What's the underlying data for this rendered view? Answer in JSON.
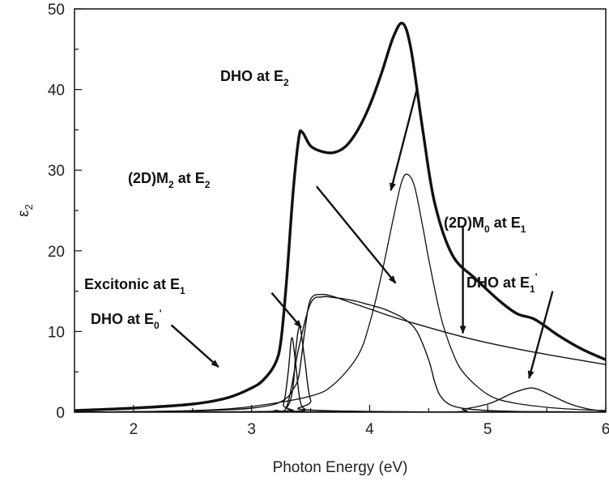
{
  "chart_data": {
    "type": "line",
    "xlabel": "Photon Energy (eV)",
    "ylabel_main": "ε",
    "ylabel_sub": "2",
    "xlim": [
      1.5,
      6.0
    ],
    "ylim": [
      0,
      50
    ],
    "xticks": [
      "2",
      "3",
      "4",
      "5",
      "6"
    ],
    "yticks": [
      "0",
      "10",
      "20",
      "30",
      "40",
      "50"
    ],
    "grid": false,
    "series": [
      {
        "role": "total",
        "x": [
          1.5,
          2.0,
          2.5,
          2.8,
          3.0,
          3.1,
          3.2,
          3.25,
          3.3,
          3.35,
          3.4,
          3.43,
          3.5,
          3.6,
          3.7,
          3.8,
          3.9,
          4.0,
          4.1,
          4.2,
          4.28,
          4.35,
          4.45,
          4.55,
          4.7,
          4.9,
          5.1,
          5.25,
          5.4,
          5.6,
          5.8,
          6.0
        ],
        "y": [
          0.2,
          0.5,
          1.0,
          1.8,
          3.0,
          4.0,
          6.0,
          9.0,
          17.0,
          27.0,
          34.0,
          34.7,
          33.0,
          32.3,
          32.2,
          33.0,
          35.0,
          38.0,
          42.0,
          46.5,
          48.2,
          45.0,
          35.0,
          26.0,
          19.5,
          16.5,
          13.8,
          12.2,
          11.5,
          9.5,
          7.8,
          6.5
        ]
      },
      {
        "role": "DHO at E2",
        "x": [
          1.5,
          2.5,
          3.0,
          3.5,
          3.7,
          3.9,
          4.0,
          4.1,
          4.2,
          4.27,
          4.32,
          4.38,
          4.45,
          4.5,
          4.6,
          4.7,
          4.8,
          5.0,
          5.2,
          5.5,
          5.8,
          6.0
        ],
        "y": [
          0,
          0.2,
          0.7,
          2.0,
          3.5,
          7.0,
          11.0,
          17.0,
          24.0,
          28.5,
          29.5,
          28.0,
          23.0,
          19.0,
          12.0,
          7.5,
          4.8,
          2.2,
          1.2,
          0.6,
          0.3,
          0.2
        ]
      },
      {
        "role": "(2D)M2 at E2",
        "x": [
          1.5,
          3.0,
          3.2,
          3.3,
          3.4,
          3.5,
          3.6,
          3.7,
          3.8,
          3.9,
          4.0,
          4.1,
          4.2,
          4.3,
          4.4,
          4.5,
          4.55,
          4.6,
          4.7,
          4.9,
          5.2,
          5.6,
          6.0
        ],
        "y": [
          0,
          0,
          0.2,
          0.8,
          8.0,
          13.5,
          14.3,
          14.2,
          14.0,
          13.7,
          13.3,
          12.9,
          12.3,
          11.5,
          10.0,
          6.5,
          3.8,
          2.0,
          0.8,
          0.3,
          0.1,
          0.05,
          0
        ],
        "stroke_width": 1.4
      },
      {
        "role": "(2D)M0 at E1",
        "x": [
          1.5,
          2.0,
          2.5,
          2.8,
          3.0,
          3.2,
          3.3,
          3.35,
          3.4,
          3.45,
          3.5,
          3.6,
          3.7,
          3.8,
          4.0,
          4.2,
          4.5,
          4.8,
          5.0,
          5.3,
          5.6,
          6.0
        ],
        "y": [
          0,
          0.05,
          0.15,
          0.3,
          0.5,
          1.0,
          1.8,
          2.8,
          4.5,
          10.0,
          14.0,
          14.6,
          14.3,
          13.8,
          12.8,
          11.8,
          10.5,
          9.3,
          8.6,
          7.7,
          6.9,
          5.9
        ],
        "stroke_width": 1.4
      },
      {
        "role": "Excitonic at E1",
        "x": [
          1.5,
          3.2,
          3.3,
          3.35,
          3.38,
          3.41,
          3.45,
          3.5,
          3.6,
          6.0
        ],
        "y": [
          0,
          0.1,
          0.6,
          3.0,
          8.5,
          10.5,
          6.5,
          1.5,
          0.2,
          0
        ],
        "stroke_width": 1.4
      },
      {
        "role": "DHO at E0'",
        "x": [
          1.5,
          3.2,
          3.27,
          3.31,
          3.34,
          3.37,
          3.41,
          3.46,
          3.55,
          6.0
        ],
        "y": [
          0,
          0.1,
          1.0,
          5.0,
          9.2,
          6.5,
          1.5,
          0.3,
          0.05,
          0
        ],
        "stroke_width": 1.4
      },
      {
        "role": "DHO at E1'",
        "x": [
          1.5,
          4.5,
          4.8,
          5.0,
          5.1,
          5.2,
          5.3,
          5.37,
          5.45,
          5.55,
          5.7,
          5.85,
          6.0
        ],
        "y": [
          0,
          0,
          0.4,
          1.0,
          1.6,
          2.3,
          2.8,
          3.0,
          2.7,
          2.0,
          1.0,
          0.4,
          0.1
        ],
        "stroke_width": 1.4
      }
    ],
    "annotations": [
      {
        "main": "DHO at E",
        "sub": "2",
        "tail": [
          4.4,
          40.0
        ],
        "head": [
          4.18,
          27.5
        ]
      },
      {
        "main": "(2D)M",
        "sub": "2",
        "main2": " at E",
        "sub2": "2",
        "tail": [
          3.55,
          28.0
        ],
        "head": [
          4.22,
          16.0
        ]
      },
      {
        "main": "(2D)M",
        "sub": "0",
        "main2": " at E",
        "sub2": "1",
        "tail": [
          4.79,
          23.0
        ],
        "head": [
          4.79,
          9.8
        ]
      },
      {
        "main": "Excitonic at E",
        "sub": "1",
        "tail": [
          3.17,
          14.8
        ],
        "head": [
          3.42,
          10.5
        ]
      },
      {
        "main": "DHO at E",
        "sub": "0",
        "sup": "'",
        "tail": [
          2.32,
          10.8
        ],
        "head": [
          2.72,
          5.6
        ]
      },
      {
        "main": "DHO at E",
        "sub": "1",
        "sup": "'",
        "tail": [
          5.55,
          15.0
        ],
        "head": [
          5.35,
          4.2
        ]
      }
    ]
  }
}
